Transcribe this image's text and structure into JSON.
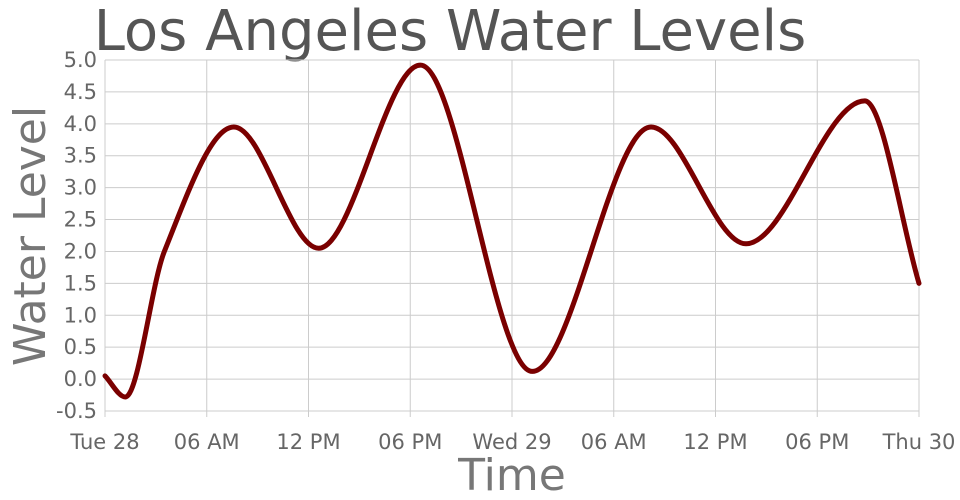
{
  "chart_data": {
    "type": "line",
    "title": "Los Angeles Water Levels",
    "xlabel": "Time",
    "ylabel": "Water Level",
    "grid": true,
    "legend": "none",
    "x_unit": "hours",
    "xlim": [
      0,
      48
    ],
    "ylim": [
      -0.5,
      5.0
    ],
    "x_ticks": [
      {
        "x": 0,
        "label": "Tue 28"
      },
      {
        "x": 6,
        "label": "06 AM"
      },
      {
        "x": 12,
        "label": "12 PM"
      },
      {
        "x": 18,
        "label": "06 PM"
      },
      {
        "x": 24,
        "label": "Wed 29"
      },
      {
        "x": 30,
        "label": "06 AM"
      },
      {
        "x": 36,
        "label": "12 PM"
      },
      {
        "x": 42,
        "label": "06 PM"
      },
      {
        "x": 48,
        "label": "Thu 30"
      }
    ],
    "y_ticks": [
      "-0.5",
      "0.0",
      "0.5",
      "1.0",
      "1.5",
      "2.0",
      "2.5",
      "3.0",
      "3.5",
      "4.0",
      "4.5",
      "5.0"
    ],
    "series": [
      {
        "color": "#7a0000",
        "x": [
          0,
          1.2,
          3.5,
          7.6,
          12.6,
          18.6,
          25.2,
          32.2,
          37.8,
          44.8,
          48
        ],
        "y": [
          0.05,
          -0.28,
          2.0,
          3.95,
          2.05,
          4.92,
          0.12,
          3.95,
          2.12,
          4.36,
          1.5
        ]
      }
    ]
  }
}
